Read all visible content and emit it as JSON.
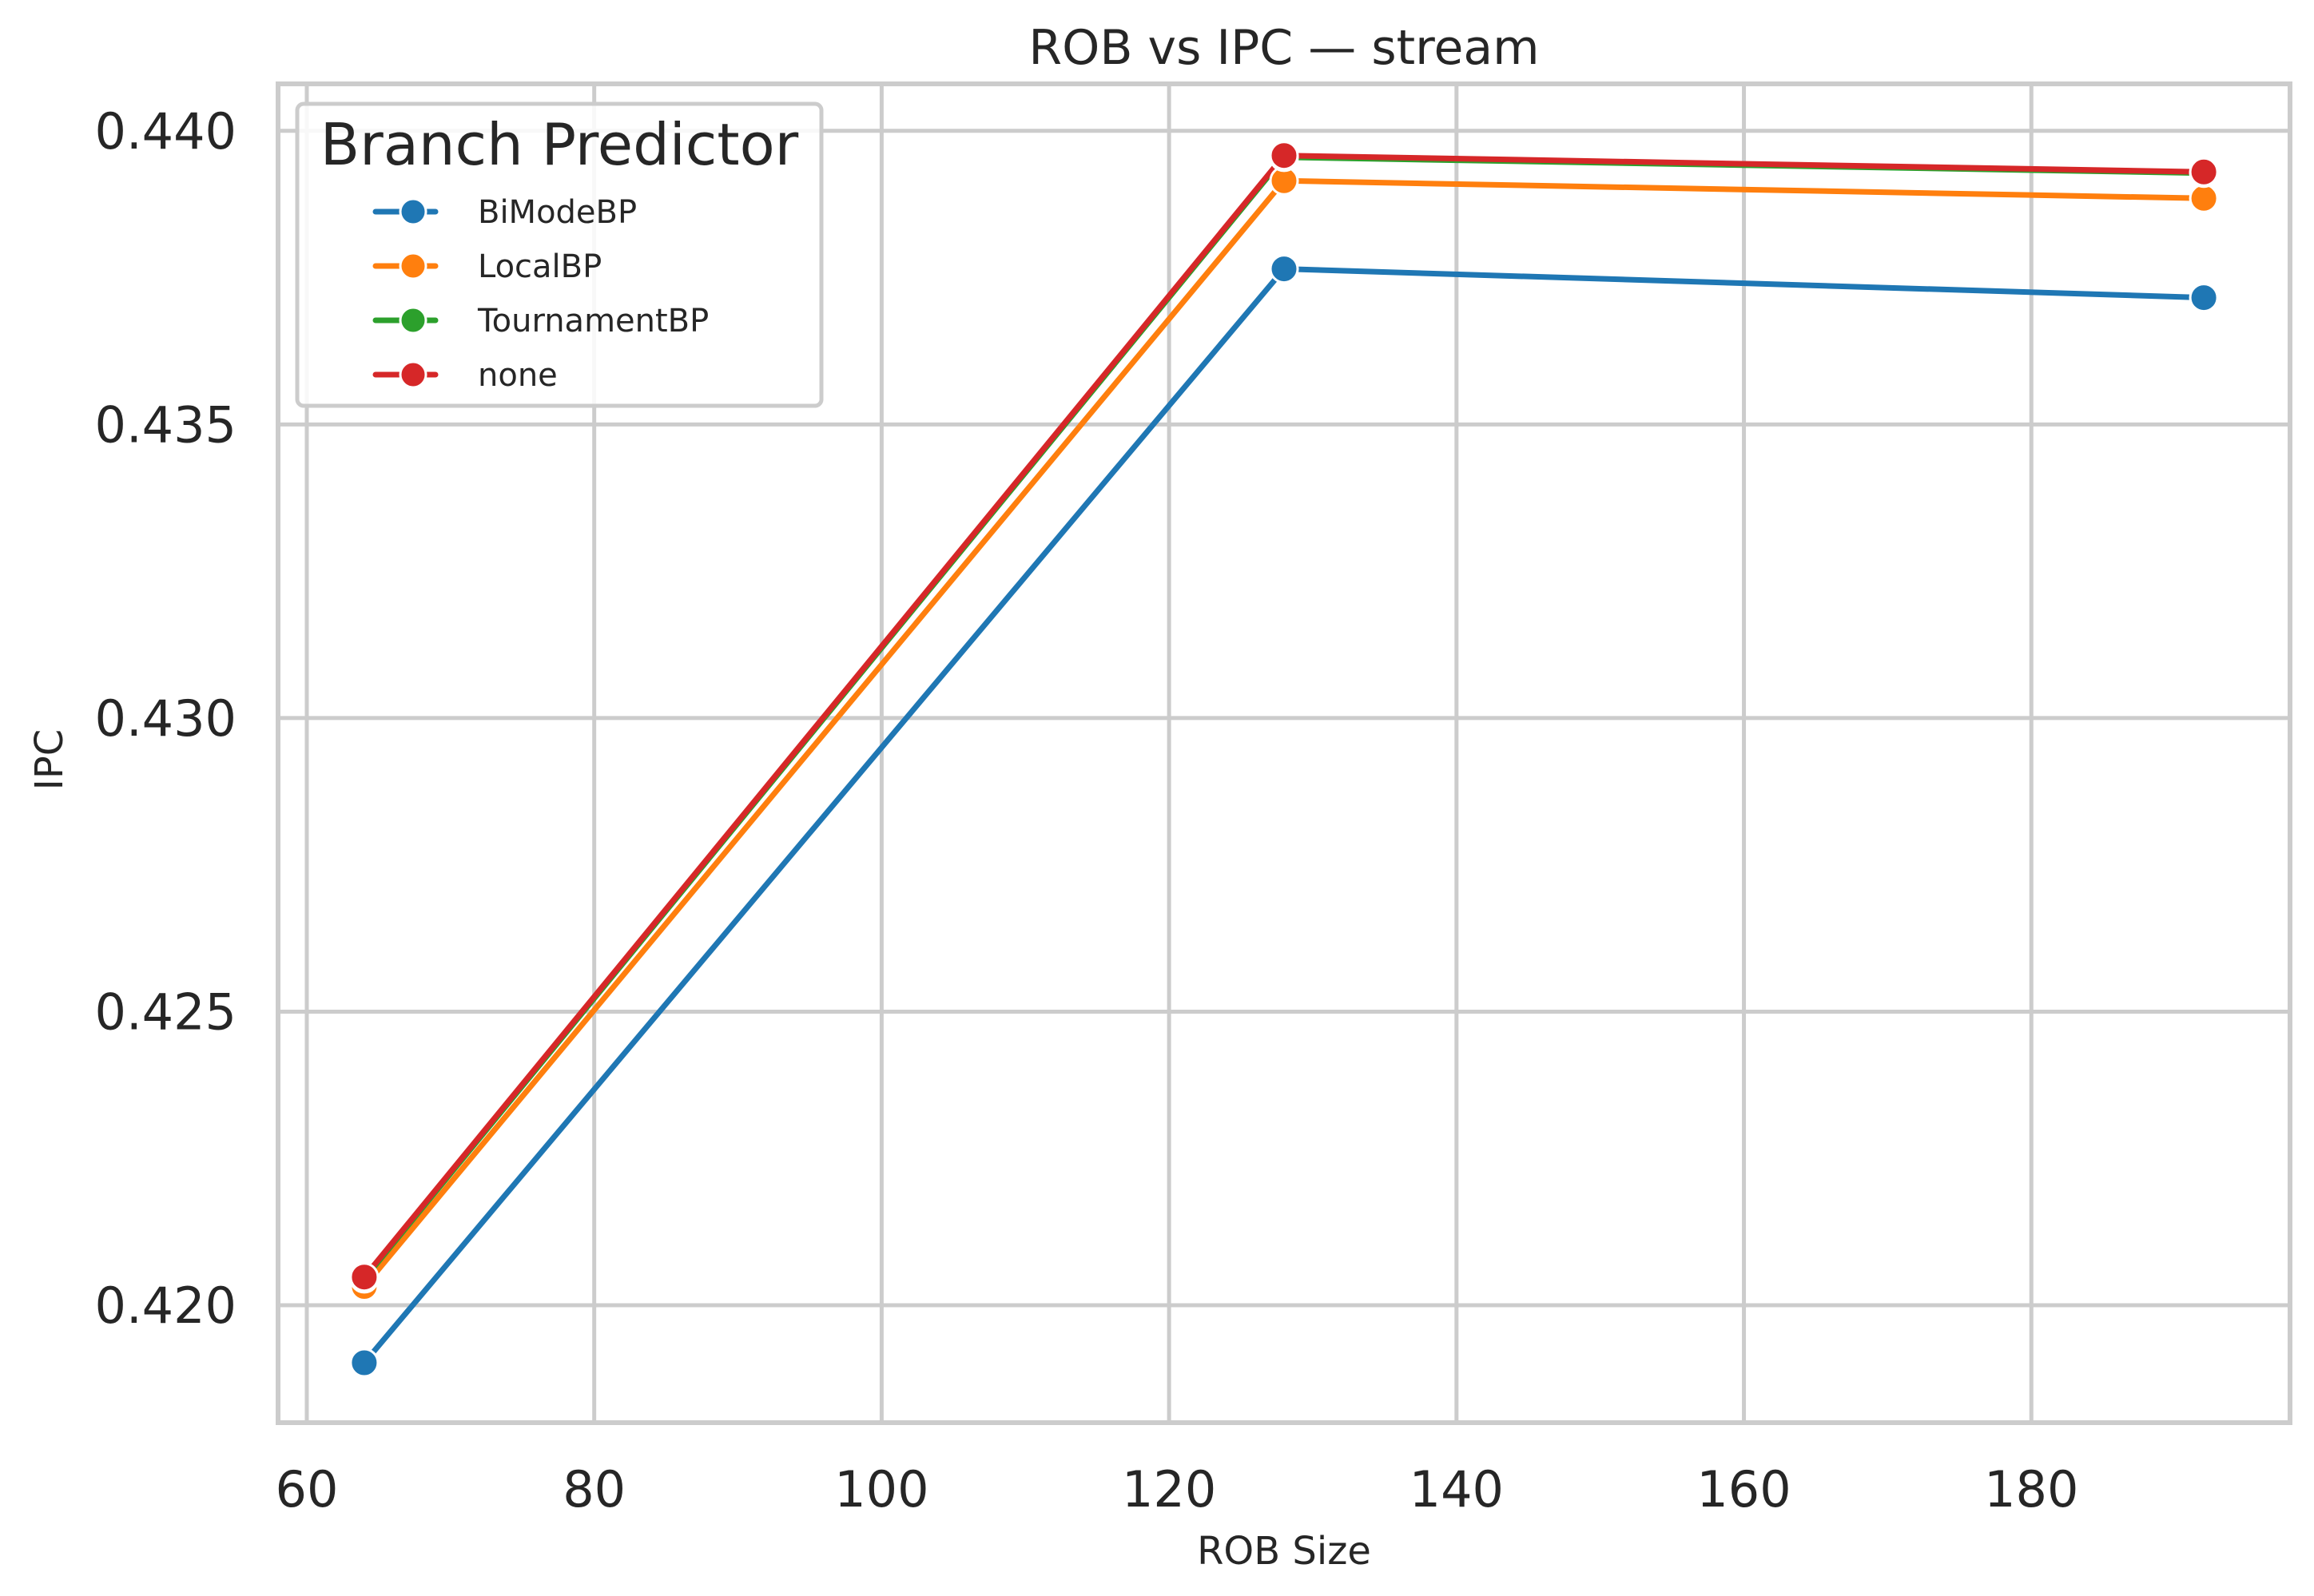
{
  "chart_data": {
    "type": "line",
    "title": "ROB vs IPC — stream",
    "xlabel": "ROB Size",
    "ylabel": "IPC",
    "xlim": [
      58,
      198
    ],
    "ylim": [
      0.418,
      0.4408
    ],
    "xticks": [
      60,
      80,
      100,
      120,
      140,
      160,
      180
    ],
    "xtick_labels": [
      "60",
      "80",
      "100",
      "120",
      "140",
      "160",
      "180"
    ],
    "yticks": [
      0.42,
      0.425,
      0.43,
      0.435,
      0.44
    ],
    "ytick_labels": [
      "0.420",
      "0.425",
      "0.430",
      "0.435",
      "0.440"
    ],
    "grid": true,
    "legend": {
      "title": "Branch Predictor",
      "position": "top-left"
    },
    "series": [
      {
        "name": "BiModeBP",
        "color": "#1f77b4",
        "x": [
          64,
          128,
          192
        ],
        "y": [
          0.41902,
          0.43765,
          0.43716
        ]
      },
      {
        "name": "LocalBP",
        "color": "#ff7f0e",
        "x": [
          64,
          128,
          192
        ],
        "y": [
          0.42032,
          0.43915,
          0.43885
        ]
      },
      {
        "name": "TournamentBP",
        "color": "#2ca02c",
        "x": [
          64,
          128,
          192
        ],
        "y": [
          0.42045,
          0.43955,
          0.43928
        ]
      },
      {
        "name": "none",
        "color": "#d62728",
        "x": [
          64,
          128,
          192
        ],
        "y": [
          0.42048,
          0.43958,
          0.4393
        ]
      }
    ]
  }
}
